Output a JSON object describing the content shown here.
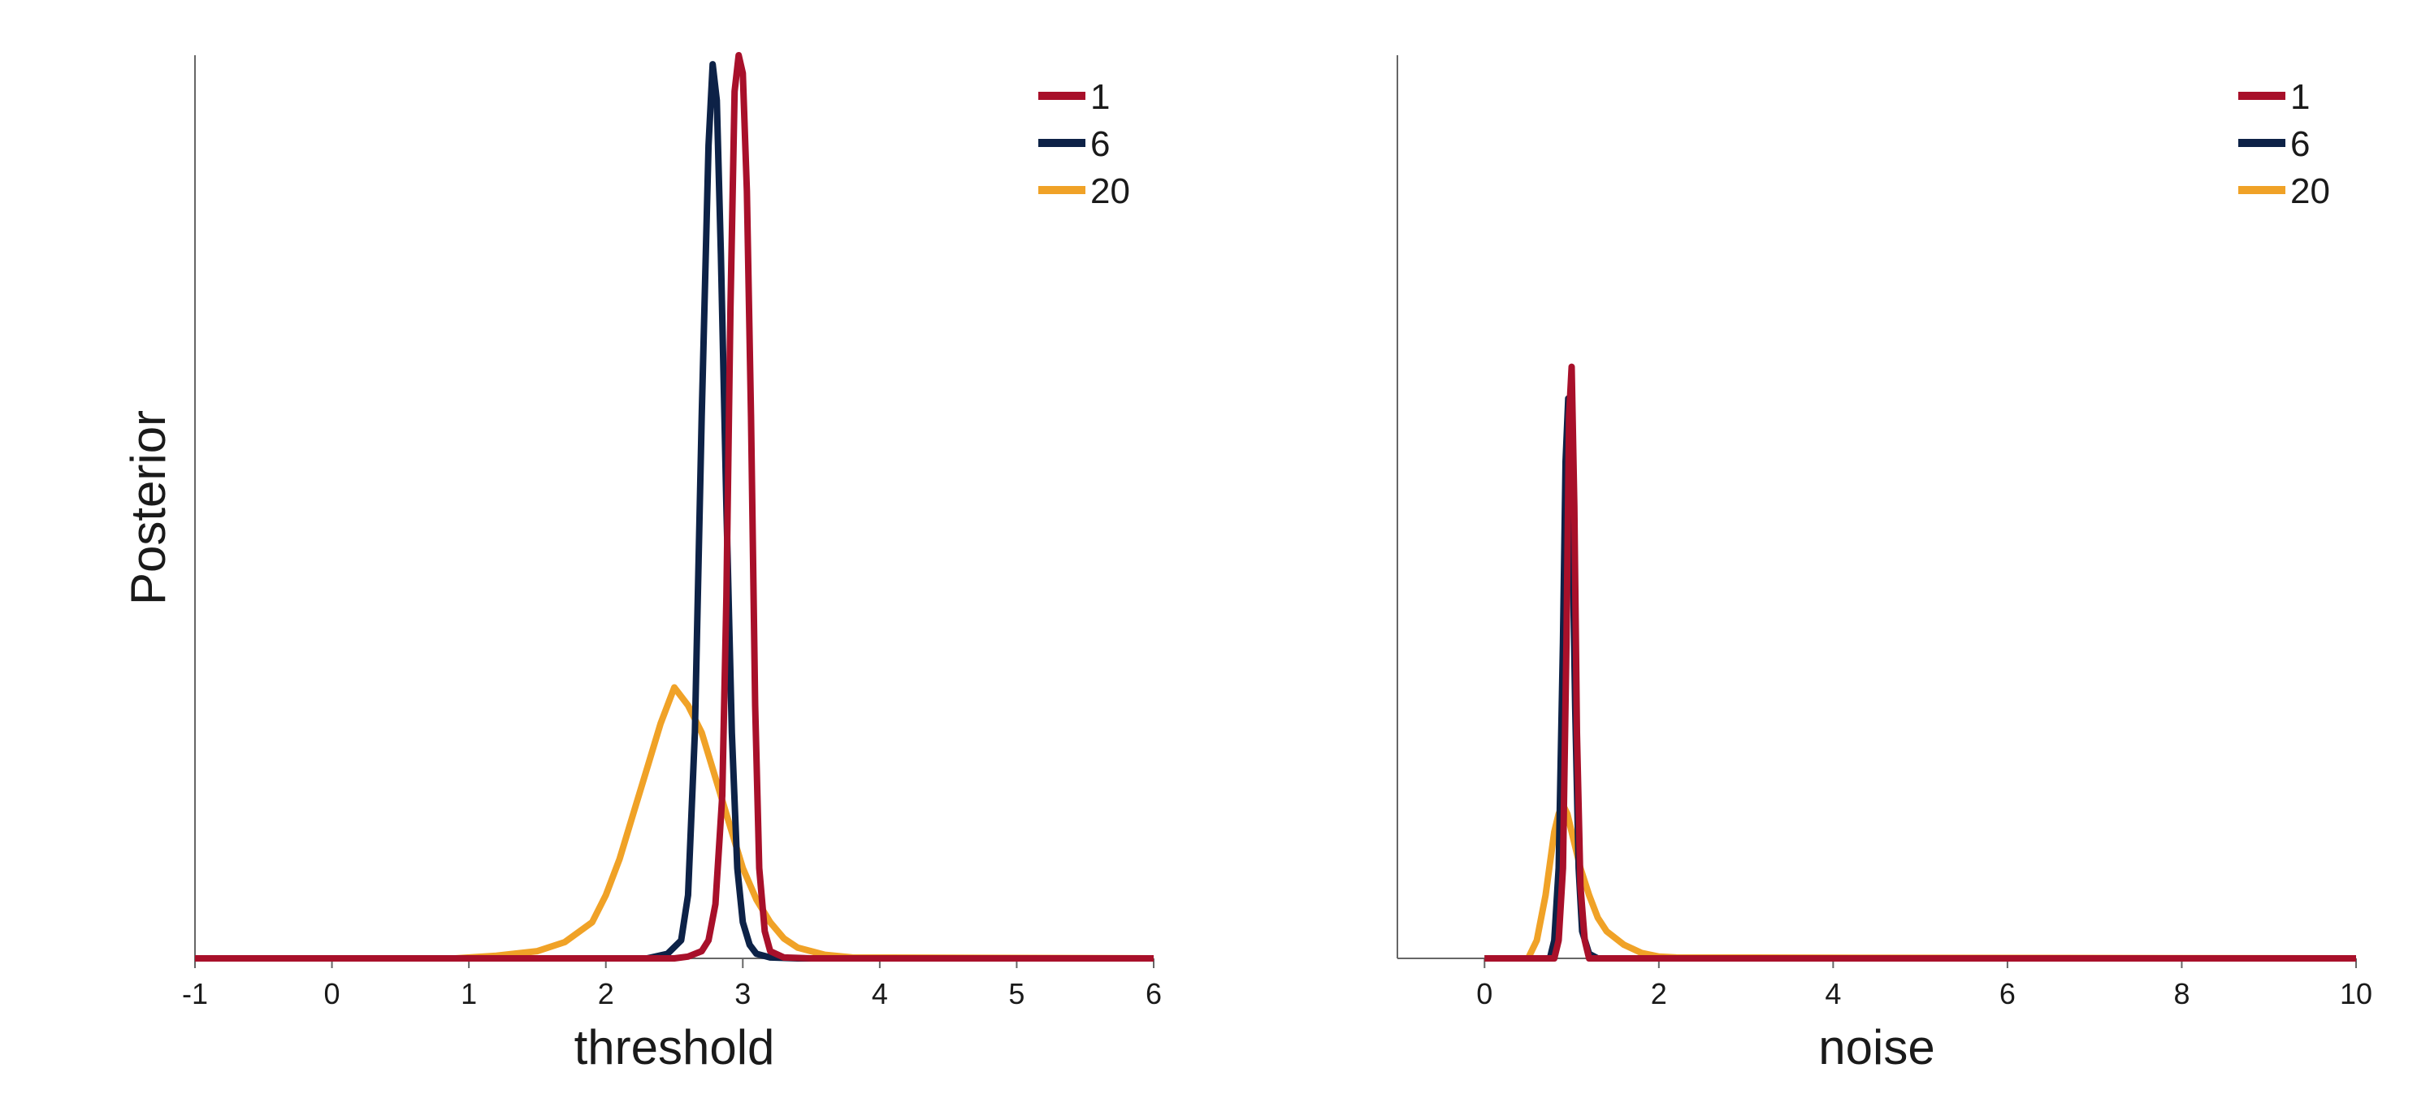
{
  "ylabel": "Posterior",
  "colors": {
    "1": "#a8102a",
    "6": "#0d2247",
    "20": "#f0a227",
    "axis": "#666666"
  },
  "chart_data": [
    {
      "type": "line",
      "title": "",
      "xlabel": "threshold",
      "ylabel": "Posterior",
      "xlim": [
        -1,
        6
      ],
      "ylim": [
        0,
        1.0
      ],
      "xticks": [
        -1,
        0,
        1,
        2,
        3,
        4,
        5,
        6
      ],
      "xtick_labels": [
        "-1",
        "0",
        "1",
        "2",
        "3",
        "4",
        "5",
        "6"
      ],
      "grid": false,
      "legend_position": "top-right",
      "series": [
        {
          "name": "1",
          "color": "#a8102a",
          "x": [
            -1,
            2.5,
            2.6,
            2.7,
            2.75,
            2.8,
            2.85,
            2.88,
            2.91,
            2.94,
            2.97,
            3.0,
            3.03,
            3.06,
            3.09,
            3.12,
            3.16,
            3.2,
            3.3,
            3.5,
            6
          ],
          "y": [
            0,
            0,
            0.002,
            0.008,
            0.02,
            0.06,
            0.18,
            0.4,
            0.72,
            0.96,
            1.0,
            0.98,
            0.85,
            0.6,
            0.28,
            0.1,
            0.03,
            0.008,
            0.001,
            0,
            0
          ]
        },
        {
          "name": "6",
          "color": "#0d2247",
          "x": [
            -1,
            2.3,
            2.45,
            2.55,
            2.6,
            2.65,
            2.7,
            2.75,
            2.78,
            2.81,
            2.84,
            2.88,
            2.92,
            2.96,
            3.0,
            3.05,
            3.1,
            3.2,
            3.4,
            6
          ],
          "y": [
            0,
            0,
            0.005,
            0.02,
            0.07,
            0.25,
            0.6,
            0.9,
            0.99,
            0.95,
            0.78,
            0.5,
            0.25,
            0.1,
            0.04,
            0.015,
            0.005,
            0.001,
            0,
            0
          ]
        },
        {
          "name": "20",
          "color": "#f0a227",
          "x": [
            -1,
            0.9,
            1.2,
            1.5,
            1.7,
            1.9,
            2.0,
            2.1,
            2.2,
            2.3,
            2.4,
            2.5,
            2.6,
            2.7,
            2.8,
            2.9,
            3.0,
            3.1,
            3.2,
            3.3,
            3.4,
            3.6,
            3.8,
            6
          ],
          "y": [
            0,
            0,
            0.003,
            0.008,
            0.018,
            0.04,
            0.07,
            0.11,
            0.16,
            0.21,
            0.26,
            0.3,
            0.28,
            0.25,
            0.2,
            0.15,
            0.1,
            0.065,
            0.04,
            0.022,
            0.012,
            0.004,
            0.001,
            0
          ]
        }
      ]
    },
    {
      "type": "line",
      "title": "",
      "xlabel": "noise",
      "ylabel": "",
      "xlim": [
        -1,
        10
      ],
      "ylim": [
        0,
        1.0
      ],
      "xticks": [
        0,
        2,
        4,
        6,
        8,
        10
      ],
      "xtick_labels": [
        "0",
        "2",
        "4",
        "6",
        "8",
        "10"
      ],
      "grid": false,
      "legend_position": "top-right",
      "series": [
        {
          "name": "1",
          "color": "#a8102a",
          "x": [
            0,
            0.8,
            0.85,
            0.9,
            0.94,
            0.97,
            1.0,
            1.03,
            1.06,
            1.1,
            1.15,
            1.2,
            10
          ],
          "y": [
            0,
            0,
            0.02,
            0.1,
            0.35,
            0.6,
            0.655,
            0.5,
            0.25,
            0.08,
            0.02,
            0,
            0
          ]
        },
        {
          "name": "6",
          "color": "#0d2247",
          "x": [
            0,
            0.75,
            0.8,
            0.85,
            0.9,
            0.93,
            0.96,
            1.0,
            1.04,
            1.08,
            1.12,
            1.2,
            1.3,
            10
          ],
          "y": [
            0,
            0,
            0.02,
            0.1,
            0.35,
            0.55,
            0.62,
            0.52,
            0.28,
            0.1,
            0.03,
            0.005,
            0,
            0
          ]
        },
        {
          "name": "20",
          "color": "#f0a227",
          "x": [
            0,
            0.5,
            0.6,
            0.7,
            0.8,
            0.85,
            0.9,
            0.95,
            1.0,
            1.1,
            1.2,
            1.3,
            1.4,
            1.6,
            1.8,
            2.0,
            2.2,
            10
          ],
          "y": [
            0,
            0,
            0.02,
            0.07,
            0.14,
            0.16,
            0.17,
            0.16,
            0.14,
            0.1,
            0.07,
            0.045,
            0.03,
            0.015,
            0.006,
            0.002,
            0.001,
            0
          ]
        }
      ]
    }
  ]
}
